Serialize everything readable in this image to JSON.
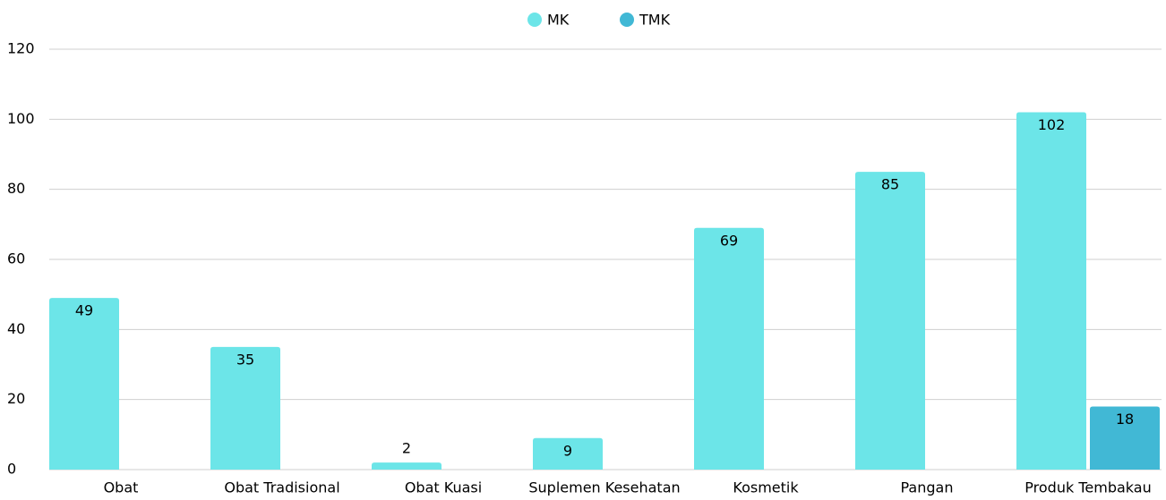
{
  "chart_data": {
    "type": "bar",
    "categories": [
      "Obat",
      "Obat Tradisional",
      "Obat Kuasi",
      "Suplemen Kesehatan",
      "Kosmetik",
      "Pangan",
      "Produk Tembakau"
    ],
    "series": [
      {
        "name": "MK",
        "color": "#6ce5e8",
        "values": [
          49,
          35,
          2,
          9,
          69,
          85,
          102
        ]
      },
      {
        "name": "TMK",
        "color": "#41b8d5",
        "values": [
          null,
          null,
          null,
          null,
          null,
          null,
          18
        ]
      }
    ],
    "ylim": [
      0,
      120
    ],
    "yticks": [
      0,
      20,
      40,
      60,
      80,
      100,
      120
    ],
    "grid": true,
    "legend": "top"
  }
}
